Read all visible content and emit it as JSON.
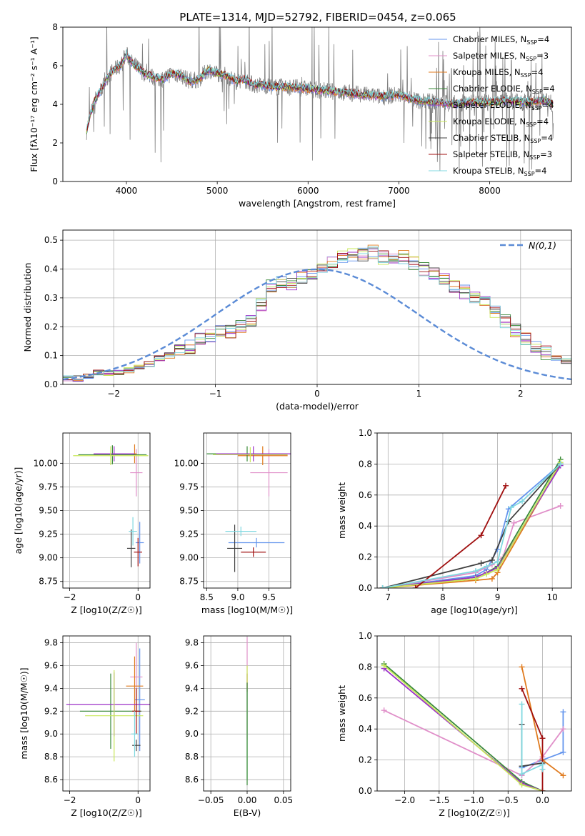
{
  "figure": {
    "title": "PLATE=1314, MJD=52792, FIBERID=0454, z=0.065"
  },
  "chart_data": [
    {
      "type": "line",
      "id": "spectrum",
      "title": "PLATE=1314, MJD=52792, FIBERID=0454, z=0.065",
      "xlabel": "wavelength [Angstrom, rest frame]",
      "ylabel": "Flux [fλ10⁻¹⁷ erg cm⁻² s⁻¹ A⁻¹]",
      "xlim": [
        3300,
        8900
      ],
      "ylim": [
        0,
        8
      ],
      "xticks": [
        4000,
        5000,
        6000,
        7000,
        8000
      ],
      "yticks": [
        0,
        2,
        4,
        6,
        8
      ],
      "grid": false,
      "legend_position": "top-right",
      "data_color": "#808080",
      "model_x": [
        3560,
        3600,
        3650,
        3700,
        3750,
        3800,
        3850,
        3900,
        3950,
        4000,
        4050,
        4100,
        4150,
        4200,
        4300,
        4400,
        4500,
        4600,
        4700,
        4800,
        4900,
        5000,
        5100,
        5200,
        5300,
        5400,
        5500,
        5600,
        5800,
        6000,
        6200,
        6400,
        6600,
        6800,
        7000,
        7200,
        7400,
        7600,
        7800,
        8000,
        8200,
        8400,
        8600,
        8700
      ],
      "model_y": [
        2.6,
        3.4,
        4.2,
        4.6,
        5.0,
        5.5,
        5.7,
        5.9,
        6.1,
        6.6,
        6.2,
        6.0,
        5.8,
        5.6,
        5.4,
        5.3,
        5.6,
        5.5,
        5.2,
        5.3,
        5.8,
        5.6,
        5.5,
        5.2,
        5.3,
        5.0,
        5.0,
        4.9,
        4.9,
        4.8,
        4.7,
        4.6,
        4.5,
        4.4,
        4.5,
        4.2,
        4.1,
        4.0,
        4.1,
        4.1,
        4.2,
        4.1,
        4.2,
        4.0
      ],
      "series": [
        {
          "name": "Chabrier MILES, N_SSP=4",
          "nssp": "4",
          "color": "#6495ed"
        },
        {
          "name": "Salpeter MILES, N_SSP=3",
          "nssp": "3",
          "color": "#e08fc9"
        },
        {
          "name": "Kroupa MILES, N_SSP=4",
          "nssp": "4",
          "color": "#e07b1f"
        },
        {
          "name": "Chabrier ELODIE, N_SSP=4",
          "nssp": "4",
          "color": "#3a8a3a"
        },
        {
          "name": "Salpeter ELODIE, N_SSP=4",
          "nssp": "4",
          "color": "#9b30c8"
        },
        {
          "name": "Kroupa ELODIE, N_SSP=4",
          "nssp": "4",
          "color": "#c8e85a"
        },
        {
          "name": "Chabrier STELIB, N_SSP=4",
          "nssp": "4",
          "color": "#404040"
        },
        {
          "name": "Salpeter STELIB, N_SSP=3",
          "nssp": "3",
          "color": "#a01010"
        },
        {
          "name": "Kroupa STELIB, N_SSP=4",
          "nssp": "4",
          "color": "#80d8e0"
        }
      ],
      "legend_labels": [
        {
          "base": "Chabrier MILES, N",
          "sub": "SSP",
          "end": "=4"
        },
        {
          "base": "Salpeter MILES, N",
          "sub": "SSP",
          "end": "=3"
        },
        {
          "base": "Kroupa MILES, N",
          "sub": "SSP",
          "end": "=4"
        },
        {
          "base": "Chabrier ELODIE, N",
          "sub": "SSP",
          "end": "=4"
        },
        {
          "base": "Salpeter ELODIE, N",
          "sub": "SSP",
          "end": "=4"
        },
        {
          "base": "Kroupa ELODIE, N",
          "sub": "SSP",
          "end": "=4"
        },
        {
          "base": "Chabrier STELIB, N",
          "sub": "SSP",
          "end": "=4"
        },
        {
          "base": "Salpeter STELIB, N",
          "sub": "SSP",
          "end": "=3"
        },
        {
          "base": "Kroupa STELIB, N",
          "sub": "SSP",
          "end": "=4"
        }
      ]
    },
    {
      "type": "histogram",
      "id": "residuals",
      "xlabel": "(data-model)/error",
      "ylabel": "Normed distribution",
      "xlim": [
        -2.5,
        2.5
      ],
      "ylim": [
        0,
        0.535
      ],
      "xticks": [
        -2,
        -1,
        0,
        1,
        2
      ],
      "yticks": [
        0.0,
        0.1,
        0.2,
        0.3,
        0.4,
        0.5
      ],
      "grid": true,
      "legend_position": "top-right",
      "reference_curve": {
        "name": "N(0,1)",
        "mu": 0,
        "sigma": 1,
        "color": "#5b8bd6"
      },
      "bin_edges_start": -2.5,
      "bin_width": 0.1,
      "bin_values": [
        0.02,
        0.02,
        0.03,
        0.04,
        0.04,
        0.04,
        0.05,
        0.06,
        0.07,
        0.09,
        0.1,
        0.12,
        0.13,
        0.16,
        0.17,
        0.18,
        0.18,
        0.2,
        0.22,
        0.28,
        0.34,
        0.36,
        0.35,
        0.37,
        0.38,
        0.41,
        0.43,
        0.44,
        0.45,
        0.45,
        0.46,
        0.44,
        0.44,
        0.44,
        0.42,
        0.4,
        0.38,
        0.36,
        0.34,
        0.32,
        0.3,
        0.28,
        0.25,
        0.22,
        0.19,
        0.16,
        0.13,
        0.11,
        0.09,
        0.08,
        0.07,
        0.06,
        0.05,
        0.05,
        0.04,
        0.04,
        0.04,
        0.03,
        0.03,
        0.02
      ],
      "series_colors": [
        "#6495ed",
        "#e08fc9",
        "#e07b1f",
        "#3a8a3a",
        "#9b30c8",
        "#c8e85a",
        "#404040",
        "#a01010",
        "#80d8e0"
      ]
    },
    {
      "type": "errorbar",
      "id": "age-vs-z",
      "xlabel": "Z [log10(Z/Z☉)]",
      "ylabel": "age  [log10(age/yr)]",
      "xlim": [
        -2.2,
        0.35
      ],
      "ylim": [
        8.68,
        10.32
      ],
      "xticks": [
        -2,
        0
      ],
      "yticks": [
        8.75,
        9.0,
        9.25,
        9.5,
        9.75,
        10.0
      ],
      "grid": true,
      "points": [
        {
          "x": 0.05,
          "xerr": 0.12,
          "y": 9.16,
          "yerr": 0.22,
          "color": "#6495ed"
        },
        {
          "x": -0.05,
          "xerr": 0.18,
          "y": 9.9,
          "yerr": 0.25,
          "color": "#e08fc9"
        },
        {
          "x": -0.1,
          "xerr": 0.06,
          "y": 10.1,
          "yerr": 0.1,
          "color": "#e07b1f"
        },
        {
          "x": -0.75,
          "xerr": 1.0,
          "y": 10.09,
          "yerr": 0.1,
          "color": "#3a8a3a"
        },
        {
          "x": -0.7,
          "xerr": 0.6,
          "y": 10.1,
          "yerr": 0.08,
          "color": "#9b30c8"
        },
        {
          "x": -0.8,
          "xerr": 1.1,
          "y": 10.08,
          "yerr": 0.1,
          "color": "#c8e85a"
        },
        {
          "x": -0.2,
          "xerr": 0.12,
          "y": 9.1,
          "yerr": 0.2,
          "color": "#404040"
        },
        {
          "x": 0.0,
          "xerr": 0.12,
          "y": 9.06,
          "yerr": 0.15,
          "color": "#a01010"
        },
        {
          "x": -0.15,
          "xerr": 0.12,
          "y": 9.28,
          "yerr": 0.15,
          "color": "#80d8e0"
        }
      ]
    },
    {
      "type": "errorbar",
      "id": "age-vs-mass",
      "xlabel": "mass [log10(M/M☉)]",
      "ylabel": "",
      "xlim": [
        8.45,
        9.85
      ],
      "ylim": [
        8.68,
        10.32
      ],
      "xticks": [
        8.5,
        9.0,
        9.5
      ],
      "yticks": [
        8.75,
        9.0,
        9.25,
        9.5,
        9.75,
        10.0
      ],
      "grid": true,
      "points": [
        {
          "x": 9.3,
          "xerr": 0.45,
          "y": 9.16,
          "yerr": 0.05,
          "color": "#6495ed"
        },
        {
          "x": 9.5,
          "xerr": 0.3,
          "y": 9.9,
          "yerr": 0.25,
          "color": "#e08fc9"
        },
        {
          "x": 9.4,
          "xerr": 0.4,
          "y": 10.08,
          "yerr": 0.1,
          "color": "#e07b1f"
        },
        {
          "x": 9.15,
          "xerr": 0.65,
          "y": 10.1,
          "yerr": 0.08,
          "color": "#3a8a3a"
        },
        {
          "x": 9.25,
          "xerr": 0.6,
          "y": 10.1,
          "yerr": 0.08,
          "color": "#9b30c8"
        },
        {
          "x": 9.2,
          "xerr": 0.6,
          "y": 10.09,
          "yerr": 0.08,
          "color": "#c8e85a"
        },
        {
          "x": 8.95,
          "xerr": 0.12,
          "y": 9.1,
          "yerr": 0.25,
          "color": "#404040"
        },
        {
          "x": 9.25,
          "xerr": 0.2,
          "y": 9.06,
          "yerr": 0.05,
          "color": "#a01010"
        },
        {
          "x": 9.05,
          "xerr": 0.25,
          "y": 9.28,
          "yerr": 0.05,
          "color": "#80d8e0"
        }
      ]
    },
    {
      "type": "line",
      "id": "mass-weight-vs-age",
      "xlabel": "age  [log10(age/yr)]",
      "ylabel": "mass weight",
      "xlim": [
        6.8,
        10.35
      ],
      "ylim": [
        0,
        1.0
      ],
      "xticks": [
        7,
        8,
        9,
        10
      ],
      "yticks": [
        0.0,
        0.2,
        0.4,
        0.6,
        0.8,
        1.0
      ],
      "grid": true,
      "series": [
        {
          "color": "#6495ed",
          "x": [
            6.9,
            8.6,
            8.8,
            9.0,
            9.2,
            10.15
          ],
          "y": [
            0.0,
            0.08,
            0.12,
            0.25,
            0.51,
            0.8
          ]
        },
        {
          "color": "#e08fc9",
          "x": [
            6.9,
            8.6,
            8.9,
            9.1,
            9.3,
            10.15
          ],
          "y": [
            0.0,
            0.1,
            0.15,
            0.2,
            0.42,
            0.53
          ]
        },
        {
          "color": "#e07b1f",
          "x": [
            6.9,
            8.6,
            8.9,
            9.0,
            10.15
          ],
          "y": [
            0.0,
            0.05,
            0.06,
            0.1,
            0.8
          ]
        },
        {
          "color": "#3a8a3a",
          "x": [
            6.9,
            8.6,
            8.8,
            9.0,
            10.15
          ],
          "y": [
            0.0,
            0.07,
            0.1,
            0.14,
            0.83
          ]
        },
        {
          "color": "#9b30c8",
          "x": [
            6.9,
            8.6,
            8.8,
            9.0,
            10.15
          ],
          "y": [
            0.0,
            0.07,
            0.1,
            0.13,
            0.79
          ]
        },
        {
          "color": "#c8e85a",
          "x": [
            6.9,
            8.6,
            8.8,
            9.0,
            10.15
          ],
          "y": [
            0.0,
            0.06,
            0.09,
            0.12,
            0.81
          ]
        },
        {
          "color": "#404040",
          "x": [
            6.9,
            8.7,
            8.9,
            9.2,
            10.15
          ],
          "y": [
            0.0,
            0.16,
            0.18,
            0.43,
            0.8
          ]
        },
        {
          "color": "#a01010",
          "x": [
            7.5,
            8.7,
            9.15
          ],
          "y": [
            0.0,
            0.34,
            0.66
          ]
        },
        {
          "color": "#80d8e0",
          "x": [
            6.9,
            8.6,
            8.8,
            9.0,
            9.25,
            9.45,
            10.15
          ],
          "y": [
            0.0,
            0.11,
            0.14,
            0.17,
            0.52,
            0.56,
            0.8
          ]
        }
      ]
    },
    {
      "type": "errorbar",
      "id": "mass-vs-z",
      "xlabel": "Z [log10(Z/Z☉)]",
      "ylabel": "mass [log10(M/M☉)]",
      "xlim": [
        -2.2,
        0.35
      ],
      "ylim": [
        8.5,
        9.86
      ],
      "xticks": [
        -2,
        0
      ],
      "yticks": [
        8.6,
        8.8,
        9.0,
        9.2,
        9.4,
        9.6,
        9.8
      ],
      "grid": true,
      "points": [
        {
          "x": 0.05,
          "xerr": 0.15,
          "y": 9.3,
          "yerr": 0.45,
          "color": "#6495ed"
        },
        {
          "x": -0.05,
          "xerr": 0.18,
          "y": 9.5,
          "yerr": 0.3,
          "color": "#e08fc9"
        },
        {
          "x": -0.1,
          "xerr": 0.25,
          "y": 9.42,
          "yerr": 0.26,
          "color": "#e07b1f"
        },
        {
          "x": -0.8,
          "xerr": 0.9,
          "y": 9.2,
          "yerr": 0.33,
          "color": "#3a8a3a"
        },
        {
          "x": -0.7,
          "xerr": 1.4,
          "y": 9.26,
          "yerr": 0.28,
          "color": "#9b30c8"
        },
        {
          "x": -0.7,
          "xerr": 0.85,
          "y": 9.16,
          "yerr": 0.4,
          "color": "#c8e85a"
        },
        {
          "x": -0.05,
          "xerr": 0.12,
          "y": 8.9,
          "yerr": 0.05,
          "color": "#404040"
        },
        {
          "x": -0.05,
          "xerr": 0.12,
          "y": 9.2,
          "yerr": 0.2,
          "color": "#a01010"
        },
        {
          "x": -0.1,
          "xerr": 0.1,
          "y": 9.0,
          "yerr": 0.2,
          "color": "#80d8e0"
        }
      ]
    },
    {
      "type": "errorbar",
      "id": "mass-vs-ebv",
      "xlabel": "E(B-V)",
      "ylabel": "",
      "xlim": [
        -0.06,
        0.06
      ],
      "ylim": [
        8.5,
        9.86
      ],
      "xticks": [
        -0.05,
        0.0,
        0.05
      ],
      "yticks": [
        8.6,
        8.8,
        9.0,
        9.2,
        9.4,
        9.6,
        9.8
      ],
      "grid": true,
      "points": [
        {
          "x": 0.0,
          "xerr": 0.0,
          "y": 9.4,
          "yerr": 0.45,
          "color": "#e08fc9"
        },
        {
          "x": 0.0,
          "xerr": 0.0,
          "y": 9.45,
          "yerr": 0.08,
          "color": "#a01010"
        },
        {
          "x": 0.0,
          "xerr": 0.0,
          "y": 9.1,
          "yerr": 0.5,
          "color": "#c8e85a"
        },
        {
          "x": 0.0,
          "xerr": 0.0,
          "y": 9.0,
          "yerr": 0.4,
          "color": "#80d8e0"
        },
        {
          "x": 0.0,
          "xerr": 0.0,
          "y": 9.0,
          "yerr": 0.45,
          "color": "#3a8a3a"
        }
      ]
    },
    {
      "type": "line",
      "id": "mass-weight-vs-z",
      "xlabel": "Z [log10(Z/Z☉)]",
      "ylabel": "mass weight",
      "xlim": [
        -2.4,
        0.42
      ],
      "ylim": [
        0,
        1.0
      ],
      "xticks": [
        -2.0,
        -1.5,
        -1.0,
        -0.5,
        0.0
      ],
      "yticks": [
        0.0,
        0.2,
        0.4,
        0.6,
        0.8,
        1.0
      ],
      "grid": true,
      "series": [
        {
          "color": "#6495ed",
          "x": [
            -0.3,
            0.0,
            0.3,
            0.3
          ],
          "y": [
            0.15,
            0.2,
            0.25,
            0.51
          ]
        },
        {
          "color": "#e08fc9",
          "x": [
            -2.3,
            -0.3,
            0.0,
            0.3
          ],
          "y": [
            0.52,
            0.1,
            0.22,
            0.4
          ]
        },
        {
          "color": "#e07b1f",
          "x": [
            -0.3,
            0.0,
            0.3
          ],
          "y": [
            0.8,
            0.2,
            0.1
          ]
        },
        {
          "color": "#3a8a3a",
          "x": [
            -2.3,
            -0.3,
            0.0
          ],
          "y": [
            0.82,
            0.06,
            0.0
          ]
        },
        {
          "color": "#9b30c8",
          "x": [
            -2.3,
            -0.3,
            0.0
          ],
          "y": [
            0.79,
            0.05,
            0.0
          ]
        },
        {
          "color": "#c8e85a",
          "x": [
            -2.3,
            -0.3,
            0.0
          ],
          "y": [
            0.81,
            0.04,
            0.0
          ]
        },
        {
          "color": "#404040",
          "x": [
            -0.3,
            -0.3,
            0.0
          ],
          "y": [
            0.43,
            0.16,
            0.18
          ]
        },
        {
          "color": "#a01010",
          "x": [
            -0.3,
            0.0,
            0.0
          ],
          "y": [
            0.66,
            0.34,
            0.0
          ]
        },
        {
          "color": "#80d8e0",
          "x": [
            -0.3,
            -0.3,
            0.0,
            0.0
          ],
          "y": [
            0.56,
            0.11,
            0.17,
            0.14
          ]
        }
      ]
    }
  ]
}
